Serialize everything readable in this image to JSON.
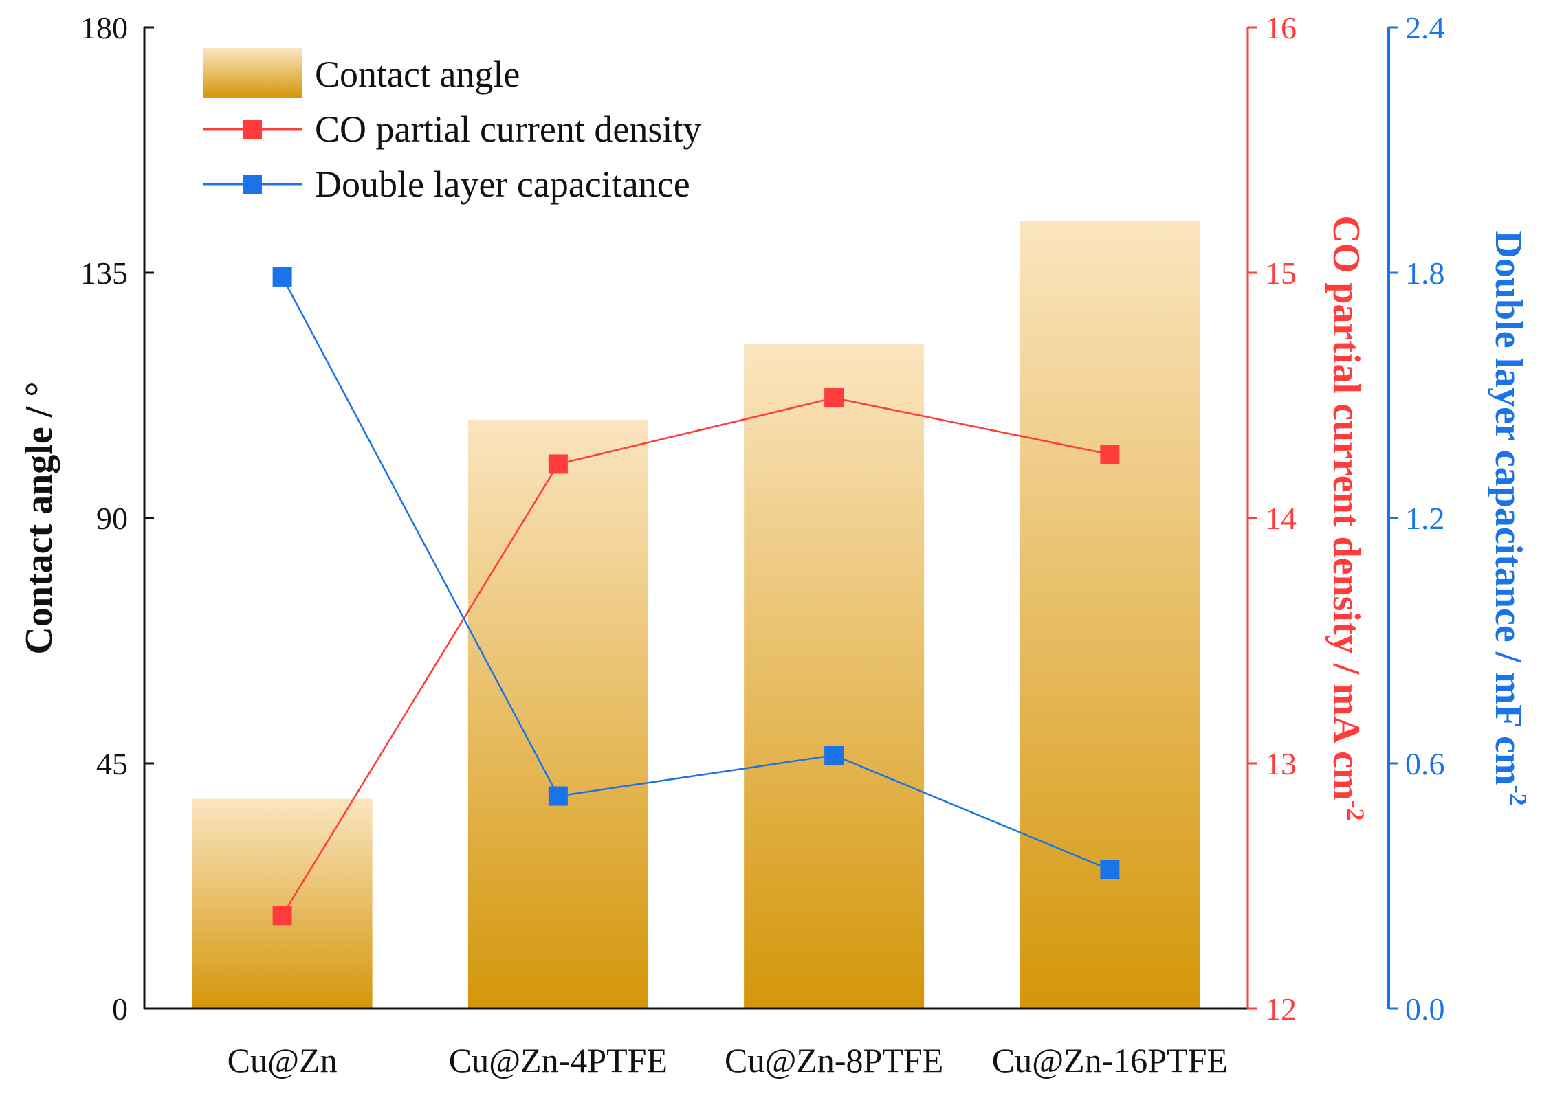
{
  "chart_data": {
    "type": "bar",
    "categories": [
      "Cu@Zn",
      "Cu@Zn-4PTFE",
      "Cu@Zn-8PTFE",
      "Cu@Zn-16PTFE"
    ],
    "series": [
      {
        "name": "Contact angle",
        "type": "bar",
        "axis": "left",
        "values": [
          38.5,
          108,
          122,
          144.5
        ],
        "color_top": "#fbe5c0",
        "color_bottom": "#d4960a"
      },
      {
        "name": "CO partial current density",
        "type": "line",
        "axis": "right",
        "values": [
          12.38,
          14.22,
          14.49,
          14.26
        ],
        "color": "#ff3b3b"
      },
      {
        "name": "Double layer capacitance",
        "type": "line",
        "axis": "far-right",
        "values": [
          1.79,
          0.52,
          0.62,
          0.34
        ],
        "color": "#1a73e8"
      }
    ],
    "axes": {
      "left": {
        "label": "Contact angle / °",
        "ylim": [
          0,
          180
        ],
        "ticks": [
          "0",
          "45",
          "90",
          "135",
          "180"
        ],
        "color": "#111111"
      },
      "right": {
        "label_main": "CO partial current density / mA cm",
        "label_sup": "-2",
        "ylim": [
          12,
          16
        ],
        "ticks": [
          "12",
          "13",
          "14",
          "15",
          "16"
        ],
        "color": "#ff3b3b"
      },
      "far_right": {
        "label_main": "Double layer capacitance / mF cm",
        "label_sup": "-2",
        "ylim": [
          0,
          2.4
        ],
        "ticks": [
          "0.0",
          "0.6",
          "1.2",
          "1.8",
          "2.4"
        ],
        "color": "#1a73e8"
      }
    },
    "legend": {
      "position": "top-left",
      "entries": [
        "Contact angle",
        "CO partial current density",
        "Double layer capacitance"
      ]
    }
  }
}
